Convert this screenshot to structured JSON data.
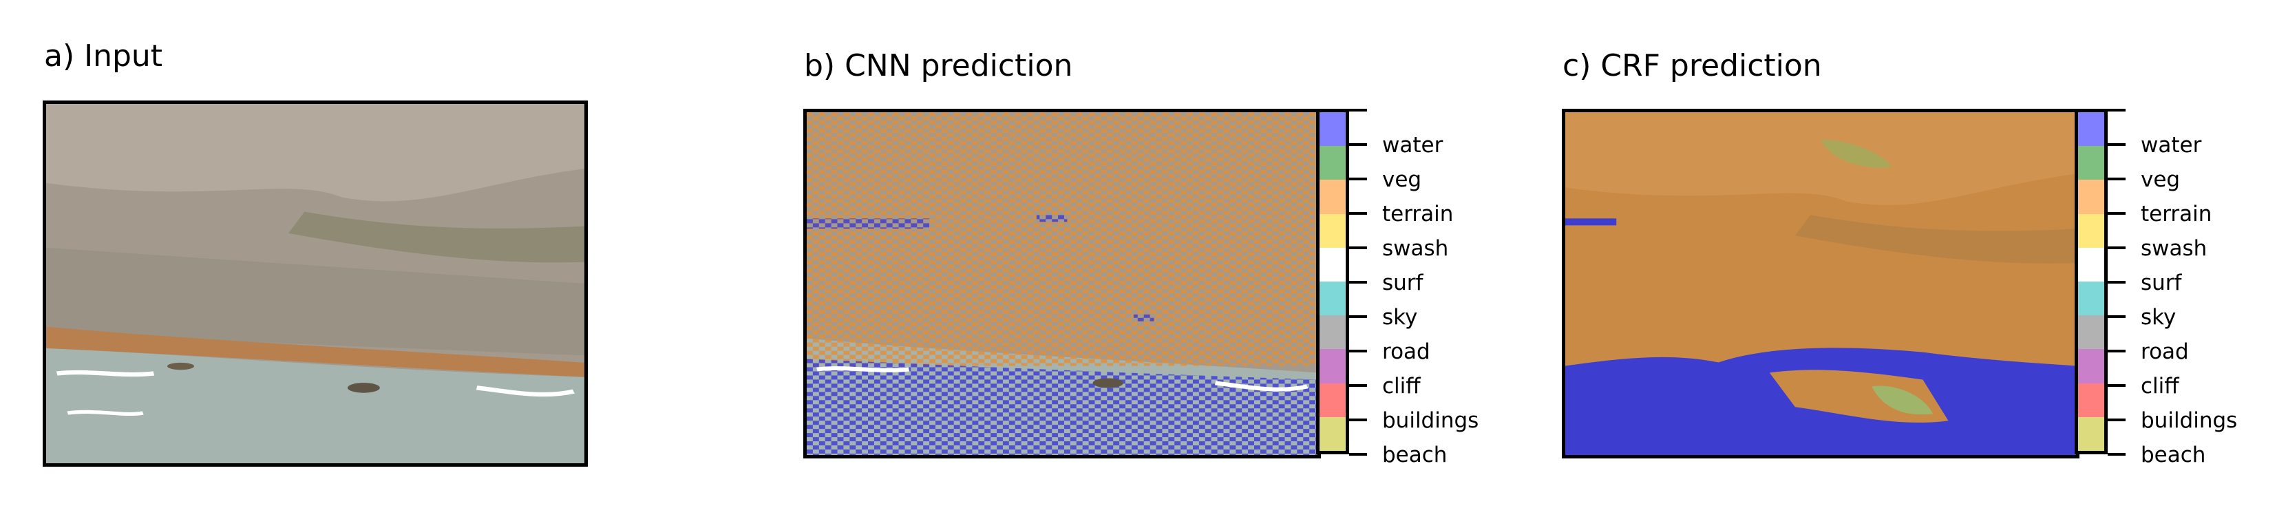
{
  "panels": [
    {
      "title": "a) Input"
    },
    {
      "title": "b) CNN prediction"
    },
    {
      "title": "c) CRF prediction"
    }
  ],
  "chart_data": {
    "type": "heatmap",
    "colorbar_classes": [
      "water",
      "veg",
      "terrain",
      "swash",
      "surf",
      "sky",
      "road",
      "cliff",
      "buildings",
      "beach"
    ],
    "class_colors": [
      "#7f7fff",
      "#7fbf7f",
      "#ffbf7f",
      "#ffe97f",
      "#ffffff",
      "#7fd8d8",
      "#b2b2b2",
      "#c97fc9",
      "#ff7f7f",
      "#dcdc7f"
    ]
  }
}
